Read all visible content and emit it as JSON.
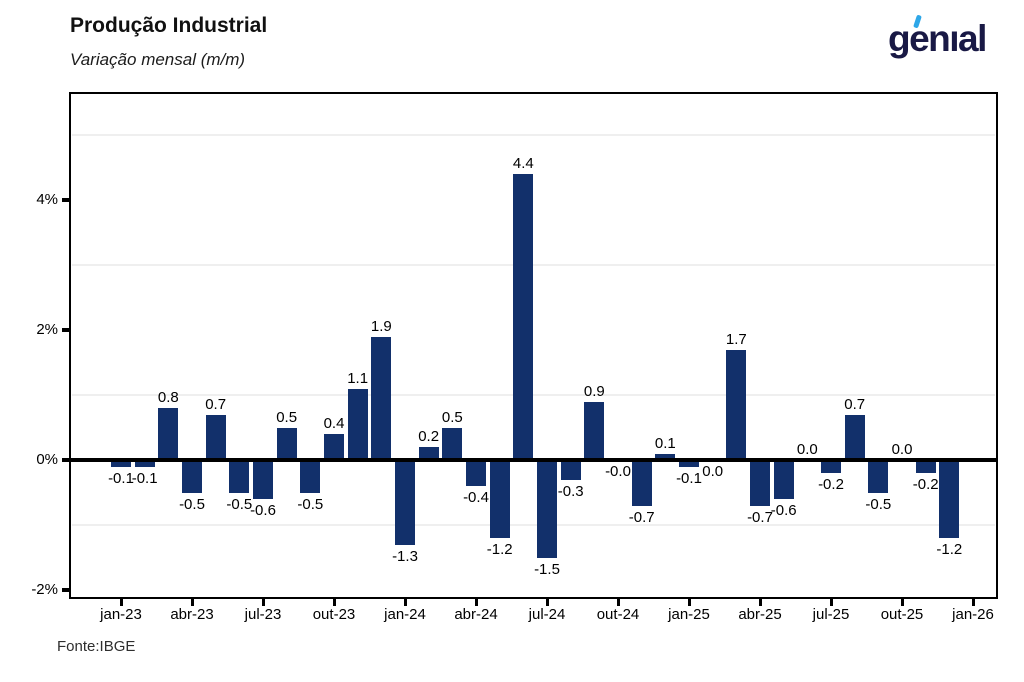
{
  "header": {
    "title": "Produção Industrial",
    "subtitle": "Variação mensal (m/m)",
    "logo_text": "genıal"
  },
  "footer": {
    "source": "Fonte:IBGE"
  },
  "chart_data": {
    "type": "bar",
    "title": "Produção Industrial",
    "subtitle": "Variação mensal (m/m)",
    "source": "Fonte:IBGE",
    "categories": [
      "jan-23",
      "fev-23",
      "mar-23",
      "abr-23",
      "mai-23",
      "jun-23",
      "jul-23",
      "ago-23",
      "set-23",
      "out-23",
      "nov-23",
      "dez-23",
      "jan-24",
      "fev-24",
      "mar-24",
      "abr-24",
      "mai-24",
      "jun-24",
      "jul-24",
      "ago-24",
      "set-24",
      "out-24",
      "nov-24",
      "dez-24",
      "jan-25",
      "fev-25",
      "mar-25",
      "abr-25",
      "mai-25",
      "jun-25",
      "jul-25",
      "ago-25",
      "set-25",
      "out-25",
      "nov-25",
      "dez-25"
    ],
    "values": [
      -0.1,
      -0.1,
      0.8,
      -0.5,
      0.7,
      -0.5,
      -0.6,
      0.5,
      -0.5,
      0.4,
      1.1,
      1.9,
      -1.3,
      0.2,
      0.5,
      -0.4,
      -1.2,
      4.4,
      -1.5,
      -0.3,
      0.9,
      0.0,
      -0.7,
      0.1,
      -0.1,
      0.0,
      1.7,
      -0.7,
      -0.6,
      0.0,
      -0.2,
      0.7,
      -0.5,
      0.0,
      -0.2,
      -1.2
    ],
    "bar_labels": [
      "-0.1",
      "-0.1",
      "0.8",
      "-0.5",
      "0.7",
      "-0.5",
      "-0.6",
      "0.5",
      "-0.5",
      "0.4",
      "1.1",
      "1.9",
      "-1.3",
      "0.2",
      "0.5",
      "-0.4",
      "-1.2",
      "4.4",
      "-1.5",
      "-0.3",
      "0.9",
      "-0.0",
      "-0.7",
      "0.1",
      "-0.1",
      "0.0",
      "1.7",
      "-0.7",
      "-0.6",
      "0.0",
      "-0.2",
      "0.7",
      "-0.5",
      "0.0",
      "-0.2",
      "-1.2"
    ],
    "label_side": [
      "below",
      "below",
      "above",
      "below",
      "above",
      "below",
      "below",
      "above",
      "below",
      "above",
      "above",
      "above",
      "below",
      "above",
      "above",
      "below",
      "below",
      "above",
      "below",
      "below",
      "above",
      "below",
      "below",
      "above",
      "below",
      "below",
      "above",
      "below",
      "below",
      "above",
      "below",
      "above",
      "below",
      "above",
      "below",
      "below"
    ],
    "x_tick_labels": [
      "jan-23",
      "abr-23",
      "jul-23",
      "out-23",
      "jan-24",
      "abr-24",
      "jul-24",
      "out-24",
      "jan-25",
      "abr-25",
      "jul-25",
      "out-25",
      "jan-26"
    ],
    "y_tick_labels": [
      "4%",
      "2%",
      "0%",
      "-2%"
    ],
    "y_tick_pct": [
      4,
      2,
      0,
      -2
    ],
    "gridline_pct": [
      5,
      3,
      1,
      -1
    ],
    "ylim_pct": [
      -2.1,
      5.65
    ],
    "xlabel": "",
    "ylabel": "",
    "legend": "none",
    "grid": "horizontal-faint",
    "bar_color": "#12306b",
    "zero_line_color": "#000000",
    "logo_color": "#191945",
    "logo_accent_color": "#2ea7e8"
  }
}
